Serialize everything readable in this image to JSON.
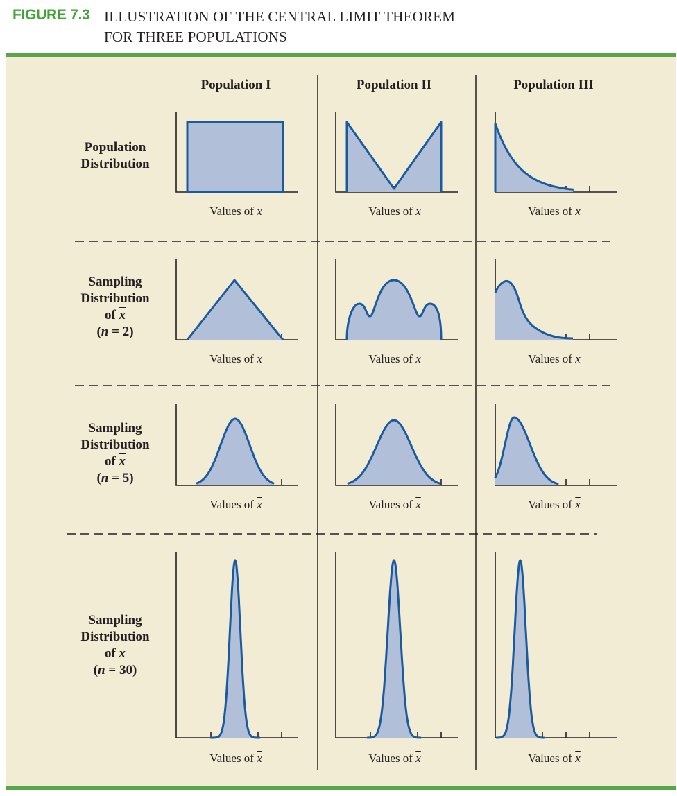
{
  "figure": {
    "number": "FIGURE 7.3",
    "title_line1": "ILLUSTRATION OF THE CENTRAL LIMIT THEOREM",
    "title_line2": "FOR THREE POPULATIONS"
  },
  "columns": [
    "Population I",
    "Population II",
    "Population III"
  ],
  "rows": [
    {
      "label_lines": [
        "Population",
        "Distribution"
      ],
      "n": null
    },
    {
      "label_lines": [
        "Sampling",
        "Distribution"
      ],
      "n": "2"
    },
    {
      "label_lines": [
        "Sampling",
        "Distribution"
      ],
      "n": "5"
    },
    {
      "label_lines": [
        "Sampling",
        "Distribution"
      ],
      "n": "30"
    }
  ],
  "axis_labels": {
    "prefix": "Values of ",
    "x_var": "x",
    "xbar_var": "x"
  },
  "of_text": "of ",
  "n_text": {
    "open": "(",
    "var": "n",
    "eq": " = ",
    "close": ")"
  },
  "colors": {
    "fill": "#b1bfd9",
    "stroke": "#1a5b9e",
    "accent": "#3fa535",
    "rule": "#58a649",
    "panel": "#f3ecd5"
  }
}
